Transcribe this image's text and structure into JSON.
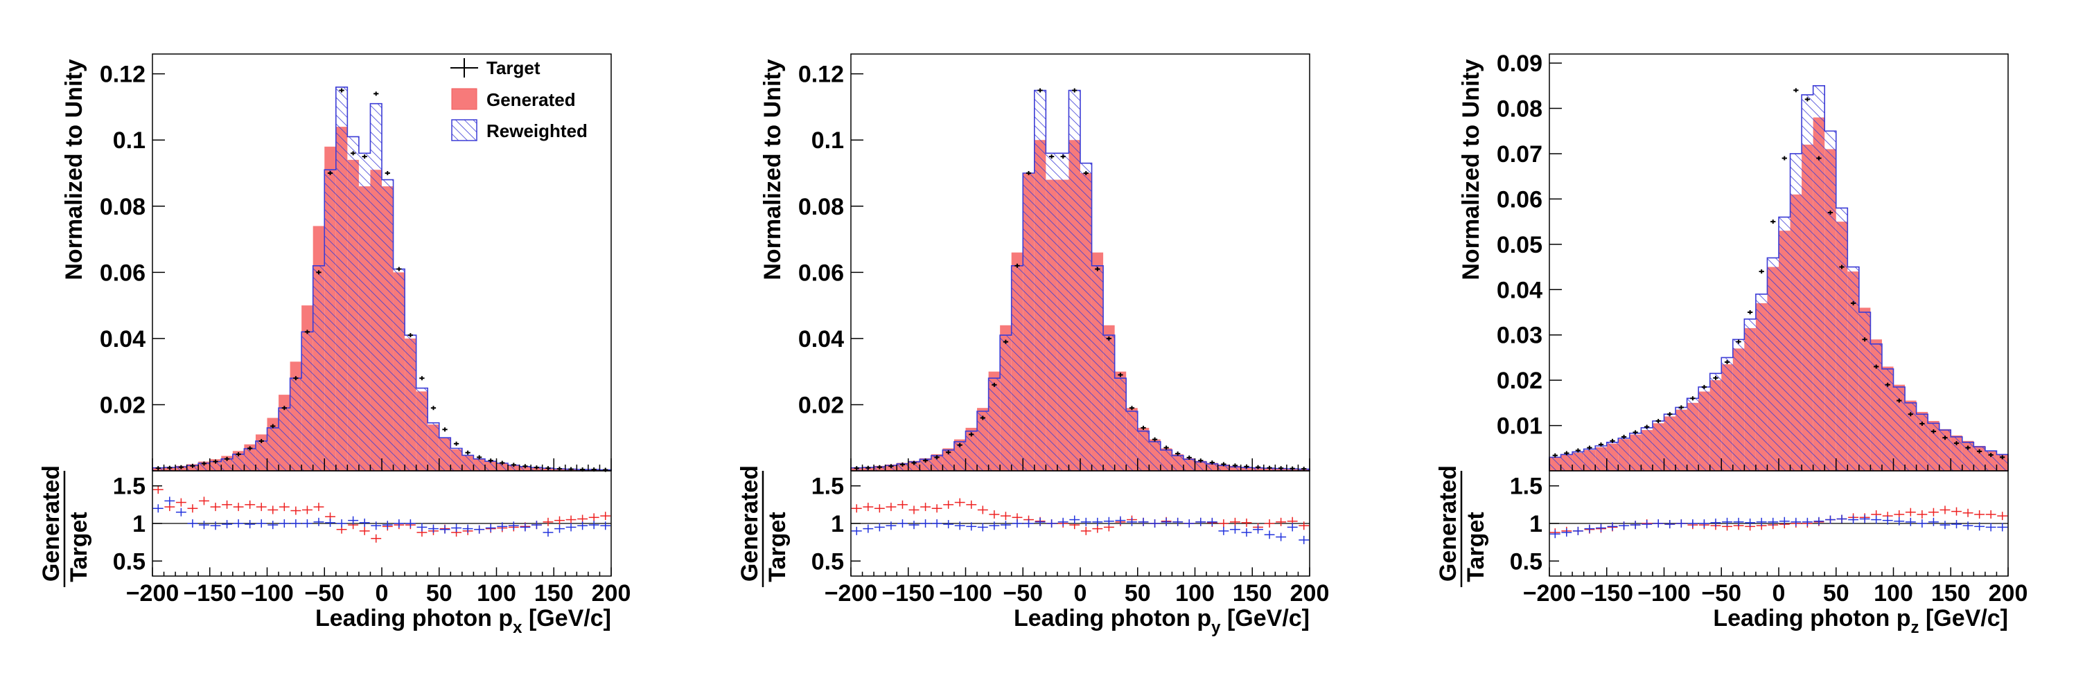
{
  "legend": {
    "target": "Target",
    "generated": "Generated",
    "reweighted": "Reweighted"
  },
  "colors": {
    "generated_fill": "#f77a7a",
    "reweighted_hatch": "#3c3cd6",
    "target": "#000000",
    "ratio_generated": "#ee2222",
    "ratio_reweighted": "#2233dd"
  },
  "chart_data": [
    {
      "type": "histogram",
      "title": "",
      "xlabel": "Leading photon p_x [GeV/c]",
      "xlabel_main": "Leading photon p",
      "xlabel_sub": "x",
      "xlabel_unit": " [GeV/c]",
      "ylabel": "Normalized to Unity",
      "ratio_ylabel_num": "Generated",
      "ratio_ylabel_den": "Target",
      "xlim": [
        -200,
        200
      ],
      "ylim": [
        0,
        0.126
      ],
      "ratio_ylim": [
        0.3,
        1.7
      ],
      "xticks": [
        "−200",
        "−150",
        "−100",
        "−50",
        "0",
        "50",
        "100",
        "150",
        "200"
      ],
      "yticks": [
        "0.02",
        "0.04",
        "0.06",
        "0.08",
        "0.1",
        "0.12"
      ],
      "ratio_yticks": [
        "0.5",
        "1",
        "1.5"
      ],
      "bin_edges_start": -200,
      "bin_width": 10,
      "series": [
        {
          "name": "Generated",
          "values": [
            0.001,
            0.0012,
            0.0015,
            0.002,
            0.0028,
            0.0035,
            0.0045,
            0.006,
            0.008,
            0.011,
            0.016,
            0.023,
            0.033,
            0.05,
            0.074,
            0.098,
            0.104,
            0.094,
            0.086,
            0.091,
            0.086,
            0.06,
            0.04,
            0.024,
            0.014,
            0.01,
            0.0065,
            0.0045,
            0.0035,
            0.0028,
            0.0022,
            0.0016,
            0.0012,
            0.0009,
            0.0007,
            0.0006,
            0.0005,
            0.0004,
            0.0004,
            0.0003
          ]
        },
        {
          "name": "Reweighted",
          "values": [
            0.0009,
            0.001,
            0.0012,
            0.0016,
            0.0023,
            0.0028,
            0.0036,
            0.005,
            0.0067,
            0.009,
            0.013,
            0.019,
            0.028,
            0.042,
            0.062,
            0.091,
            0.116,
            0.101,
            0.096,
            0.111,
            0.088,
            0.061,
            0.041,
            0.025,
            0.0145,
            0.01,
            0.0068,
            0.0047,
            0.0036,
            0.0029,
            0.0023,
            0.0017,
            0.0013,
            0.001,
            0.0008,
            0.0006,
            0.0005,
            0.0004,
            0.0004,
            0.0003
          ]
        },
        {
          "name": "Target",
          "values": [
            0.0008,
            0.0009,
            0.0011,
            0.0015,
            0.0022,
            0.0028,
            0.0036,
            0.005,
            0.0068,
            0.009,
            0.0135,
            0.019,
            0.028,
            0.042,
            0.06,
            0.09,
            0.115,
            0.096,
            0.095,
            0.114,
            0.09,
            0.061,
            0.041,
            0.028,
            0.019,
            0.0125,
            0.0082,
            0.0055,
            0.0041,
            0.0031,
            0.0024,
            0.0018,
            0.0014,
            0.001,
            0.0008,
            0.0006,
            0.0005,
            0.0004,
            0.0004,
            0.0003
          ]
        },
        {
          "name": "Ratio Generated/Target",
          "values": [
            1.45,
            1.22,
            1.28,
            1.2,
            1.3,
            1.22,
            1.25,
            1.22,
            1.25,
            1.22,
            1.18,
            1.22,
            1.17,
            1.18,
            1.22,
            1.09,
            0.92,
            0.98,
            0.9,
            0.8,
            0.96,
            0.98,
            0.98,
            0.88,
            0.9,
            0.93,
            0.88,
            0.9,
            0.92,
            0.93,
            0.94,
            0.95,
            0.96,
            0.98,
            1.02,
            1.04,
            1.05,
            1.06,
            1.08,
            1.1
          ]
        },
        {
          "name": "Ratio Reweighted/Target",
          "values": [
            1.2,
            1.3,
            1.15,
            1.0,
            0.98,
            0.97,
            0.99,
            1.0,
            0.99,
            1.0,
            0.98,
            1.0,
            1.0,
            1.0,
            1.02,
            1.01,
            1.0,
            1.04,
            1.01,
            0.97,
            0.98,
            1.0,
            1.0,
            0.95,
            0.93,
            0.92,
            0.94,
            0.93,
            0.92,
            0.94,
            0.96,
            0.97,
            0.95,
            0.98,
            0.88,
            0.93,
            0.95,
            0.97,
            0.98,
            0.97
          ]
        }
      ]
    },
    {
      "type": "histogram",
      "title": "",
      "xlabel": "Leading photon p_y [GeV/c]",
      "xlabel_main": "Leading photon p",
      "xlabel_sub": "y",
      "xlabel_unit": " [GeV/c]",
      "ylabel": "Normalized to Unity",
      "ratio_ylabel_num": "Generated",
      "ratio_ylabel_den": "Target",
      "xlim": [
        -200,
        200
      ],
      "ylim": [
        0,
        0.126
      ],
      "ratio_ylim": [
        0.3,
        1.7
      ],
      "xticks": [
        "−200",
        "−150",
        "−100",
        "−50",
        "0",
        "50",
        "100",
        "150",
        "200"
      ],
      "yticks": [
        "0.02",
        "0.04",
        "0.06",
        "0.08",
        "0.1",
        "0.12"
      ],
      "ratio_yticks": [
        "0.5",
        "1",
        "1.5"
      ],
      "bin_edges_start": -200,
      "bin_width": 10,
      "series": [
        {
          "name": "Generated",
          "values": [
            0.001,
            0.0012,
            0.0015,
            0.0019,
            0.0024,
            0.003,
            0.0038,
            0.005,
            0.0068,
            0.0095,
            0.013,
            0.019,
            0.03,
            0.044,
            0.066,
            0.09,
            0.1,
            0.088,
            0.088,
            0.1,
            0.09,
            0.066,
            0.044,
            0.03,
            0.019,
            0.013,
            0.0095,
            0.0068,
            0.005,
            0.0038,
            0.003,
            0.0024,
            0.0019,
            0.0015,
            0.0012,
            0.001,
            0.0009,
            0.0008,
            0.0007,
            0.0006
          ]
        },
        {
          "name": "Reweighted",
          "values": [
            0.0009,
            0.001,
            0.0012,
            0.0016,
            0.0021,
            0.0027,
            0.0035,
            0.0046,
            0.0063,
            0.0088,
            0.012,
            0.018,
            0.028,
            0.041,
            0.062,
            0.09,
            0.115,
            0.096,
            0.096,
            0.115,
            0.093,
            0.062,
            0.041,
            0.028,
            0.018,
            0.012,
            0.0088,
            0.0063,
            0.0046,
            0.0035,
            0.0027,
            0.0021,
            0.0016,
            0.0012,
            0.001,
            0.0009,
            0.0008,
            0.0007,
            0.0006,
            0.0005
          ]
        },
        {
          "name": "Target",
          "values": [
            0.0008,
            0.0009,
            0.0011,
            0.0014,
            0.0019,
            0.0024,
            0.0031,
            0.0041,
            0.0056,
            0.0078,
            0.011,
            0.016,
            0.026,
            0.039,
            0.062,
            0.09,
            0.115,
            0.095,
            0.095,
            0.115,
            0.09,
            0.061,
            0.04,
            0.029,
            0.019,
            0.013,
            0.0095,
            0.007,
            0.0052,
            0.004,
            0.0031,
            0.0025,
            0.002,
            0.0016,
            0.0013,
            0.0011,
            0.0009,
            0.0008,
            0.0007,
            0.0006
          ]
        },
        {
          "name": "Ratio Generated/Target",
          "values": [
            1.2,
            1.22,
            1.2,
            1.22,
            1.25,
            1.18,
            1.22,
            1.2,
            1.25,
            1.28,
            1.25,
            1.18,
            1.12,
            1.1,
            1.08,
            1.05,
            1.03,
            1.0,
            1.0,
            0.98,
            0.9,
            0.93,
            0.95,
            1.02,
            1.05,
            1.02,
            1.0,
            1.03,
            1.02,
            1.0,
            1.02,
            1.01,
            1.0,
            1.02,
            1.01,
            0.95,
            1.0,
            1.02,
            1.03,
            0.97
          ]
        },
        {
          "name": "Ratio Reweighted/Target",
          "values": [
            0.9,
            0.93,
            0.95,
            0.97,
            1.0,
            0.98,
            1.0,
            1.0,
            0.99,
            0.97,
            0.96,
            0.95,
            0.97,
            0.98,
            1.0,
            1.0,
            1.02,
            1.0,
            1.02,
            1.05,
            1.02,
            1.02,
            1.03,
            1.04,
            1.02,
            1.02,
            1.0,
            1.02,
            1.02,
            1.0,
            1.02,
            1.02,
            0.9,
            0.92,
            0.88,
            0.92,
            0.85,
            0.82,
            0.95,
            0.78
          ]
        }
      ]
    },
    {
      "type": "histogram",
      "title": "",
      "xlabel": "Leading photon p_z [GeV/c]",
      "xlabel_main": "Leading photon p",
      "xlabel_sub": "z",
      "xlabel_unit": " [GeV/c]",
      "ylabel": "Normalized to Unity",
      "ratio_ylabel_num": "Generated",
      "ratio_ylabel_den": "Target",
      "xlim": [
        -200,
        200
      ],
      "ylim": [
        0,
        0.092
      ],
      "ratio_ylim": [
        0.3,
        1.7
      ],
      "xticks": [
        "−200",
        "−150",
        "−100",
        "−50",
        "0",
        "50",
        "100",
        "150",
        "200"
      ],
      "yticks": [
        "0.01",
        "0.02",
        "0.03",
        "0.04",
        "0.05",
        "0.06",
        "0.07",
        "0.08",
        "0.09"
      ],
      "ratio_yticks": [
        "0.5",
        "1",
        "1.5"
      ],
      "bin_edges_start": -200,
      "bin_width": 10,
      "series": [
        {
          "name": "Generated",
          "values": [
            0.003,
            0.0035,
            0.004,
            0.0046,
            0.0052,
            0.006,
            0.007,
            0.008,
            0.009,
            0.0105,
            0.012,
            0.0135,
            0.015,
            0.0175,
            0.02,
            0.0235,
            0.027,
            0.0315,
            0.037,
            0.045,
            0.053,
            0.061,
            0.072,
            0.078,
            0.071,
            0.055,
            0.044,
            0.036,
            0.029,
            0.023,
            0.019,
            0.0155,
            0.013,
            0.011,
            0.0092,
            0.0078,
            0.0066,
            0.0055,
            0.0045,
            0.0037
          ]
        },
        {
          "name": "Reweighted",
          "values": [
            0.003,
            0.0036,
            0.0042,
            0.0048,
            0.0055,
            0.0063,
            0.0072,
            0.0083,
            0.0095,
            0.011,
            0.0125,
            0.014,
            0.016,
            0.0185,
            0.0215,
            0.025,
            0.029,
            0.0335,
            0.039,
            0.047,
            0.056,
            0.07,
            0.083,
            0.085,
            0.075,
            0.058,
            0.045,
            0.035,
            0.028,
            0.0225,
            0.0185,
            0.015,
            0.0125,
            0.0105,
            0.009,
            0.0075,
            0.0063,
            0.0053,
            0.0044,
            0.0036
          ]
        },
        {
          "name": "Target",
          "values": [
            0.0034,
            0.0039,
            0.0045,
            0.0051,
            0.0058,
            0.0066,
            0.0075,
            0.0085,
            0.0097,
            0.011,
            0.0125,
            0.014,
            0.016,
            0.0185,
            0.0205,
            0.024,
            0.0285,
            0.035,
            0.044,
            0.055,
            0.069,
            0.084,
            0.082,
            0.069,
            0.057,
            0.045,
            0.037,
            0.029,
            0.023,
            0.019,
            0.0155,
            0.0125,
            0.0104,
            0.0087,
            0.0073,
            0.0061,
            0.0051,
            0.0043,
            0.0035,
            0.003
          ]
        },
        {
          "name": "Ratio Generated/Target",
          "values": [
            0.88,
            0.9,
            0.9,
            0.92,
            0.93,
            0.95,
            0.97,
            0.98,
            1.0,
            1.0,
            0.99,
            1.0,
            0.98,
            0.98,
            0.97,
            0.96,
            0.97,
            0.96,
            0.97,
            0.98,
            0.99,
            1.0,
            1.0,
            1.02,
            1.05,
            1.06,
            1.08,
            1.08,
            1.12,
            1.1,
            1.12,
            1.15,
            1.12,
            1.15,
            1.18,
            1.16,
            1.14,
            1.12,
            1.12,
            1.1
          ]
        },
        {
          "name": "Ratio Reweighted/Target",
          "values": [
            0.86,
            0.88,
            0.9,
            0.93,
            0.94,
            0.96,
            0.97,
            0.98,
            0.99,
            1.0,
            0.99,
            1.0,
            1.0,
            1.0,
            1.01,
            1.02,
            1.02,
            1.01,
            1.02,
            1.02,
            1.03,
            1.02,
            1.02,
            1.03,
            1.05,
            1.06,
            1.05,
            1.06,
            1.05,
            1.04,
            1.03,
            1.02,
            1.0,
            1.02,
            0.98,
            0.99,
            0.97,
            0.96,
            0.95,
            0.95
          ]
        }
      ]
    }
  ]
}
